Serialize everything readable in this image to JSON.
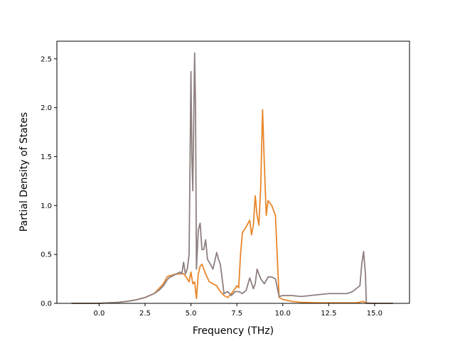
{
  "chart_data": {
    "type": "line",
    "title": "",
    "xlabel": "Frequency (THz)",
    "ylabel": "Partial Density of States",
    "xlim": [
      -2.3,
      16.9
    ],
    "ylim": [
      0,
      2.68
    ],
    "xticks": [
      0.0,
      2.5,
      5.0,
      7.5,
      10.0,
      12.5,
      15.0
    ],
    "xtick_labels": [
      "0.0",
      "2.5",
      "5.0",
      "7.5",
      "10.0",
      "12.5",
      "15.0"
    ],
    "yticks": [
      0.0,
      0.5,
      1.0,
      1.5,
      2.0,
      2.5
    ],
    "ytick_labels": [
      "0.0",
      "0.5",
      "1.0",
      "1.5",
      "2.0",
      "2.5"
    ],
    "grid": false,
    "legend": "none",
    "series": [
      {
        "color": "#e8862a",
        "x": [
          -1.5,
          0.0,
          0.5,
          1.0,
          1.5,
          2.0,
          2.5,
          3.0,
          3.3,
          3.5,
          3.7,
          3.8,
          4.0,
          4.2,
          4.4,
          4.5,
          4.6,
          4.7,
          4.8,
          4.9,
          5.0,
          5.1,
          5.2,
          5.3,
          5.4,
          5.5,
          5.6,
          5.7,
          5.8,
          6.0,
          6.2,
          6.4,
          6.6,
          6.8,
          7.0,
          7.2,
          7.4,
          7.5,
          7.6,
          7.7,
          7.8,
          8.0,
          8.2,
          8.3,
          8.4,
          8.5,
          8.6,
          8.7,
          8.8,
          8.9,
          9.0,
          9.1,
          9.2,
          9.4,
          9.6,
          9.8,
          10.0,
          10.5,
          11.0,
          12.0,
          13.0,
          14.0,
          14.4,
          14.5,
          15.0,
          16.0
        ],
        "values": [
          0.0,
          0.0,
          0.005,
          0.01,
          0.02,
          0.035,
          0.06,
          0.1,
          0.16,
          0.2,
          0.27,
          0.28,
          0.29,
          0.3,
          0.3,
          0.31,
          0.3,
          0.28,
          0.25,
          0.22,
          0.32,
          0.2,
          0.22,
          0.05,
          0.3,
          0.38,
          0.4,
          0.35,
          0.3,
          0.22,
          0.2,
          0.18,
          0.12,
          0.08,
          0.06,
          0.1,
          0.15,
          0.18,
          0.16,
          0.5,
          0.72,
          0.78,
          0.85,
          0.7,
          0.8,
          1.1,
          0.9,
          0.8,
          1.2,
          1.98,
          1.4,
          0.9,
          1.05,
          1.0,
          0.9,
          0.06,
          0.04,
          0.02,
          0.01,
          0.005,
          0.005,
          0.005,
          0.02,
          0.005,
          0.0,
          0.0
        ]
      },
      {
        "color": "#8e7f7f",
        "x": [
          -1.5,
          0.0,
          0.5,
          1.0,
          1.5,
          2.0,
          2.5,
          3.0,
          3.3,
          3.5,
          3.7,
          3.8,
          4.0,
          4.2,
          4.4,
          4.5,
          4.6,
          4.7,
          4.8,
          4.9,
          5.0,
          5.05,
          5.1,
          5.2,
          5.25,
          5.3,
          5.4,
          5.5,
          5.6,
          5.7,
          5.8,
          5.9,
          6.0,
          6.2,
          6.4,
          6.5,
          6.6,
          6.8,
          7.0,
          7.2,
          7.4,
          7.6,
          7.8,
          8.0,
          8.2,
          8.4,
          8.5,
          8.6,
          8.8,
          9.0,
          9.2,
          9.4,
          9.6,
          9.8,
          10.0,
          10.5,
          11.0,
          11.5,
          12.0,
          12.5,
          13.0,
          13.5,
          13.8,
          14.0,
          14.2,
          14.3,
          14.4,
          14.5,
          14.55,
          15.0,
          16.0
        ],
        "values": [
          0.0,
          0.0,
          0.005,
          0.01,
          0.02,
          0.035,
          0.06,
          0.1,
          0.14,
          0.18,
          0.24,
          0.26,
          0.28,
          0.3,
          0.32,
          0.3,
          0.42,
          0.3,
          0.35,
          0.5,
          2.37,
          1.5,
          1.15,
          2.56,
          2.0,
          0.35,
          0.75,
          0.82,
          0.55,
          0.55,
          0.65,
          0.45,
          0.42,
          0.35,
          0.52,
          0.45,
          0.4,
          0.1,
          0.12,
          0.08,
          0.12,
          0.12,
          0.1,
          0.13,
          0.26,
          0.15,
          0.2,
          0.35,
          0.25,
          0.2,
          0.27,
          0.27,
          0.25,
          0.07,
          0.08,
          0.08,
          0.07,
          0.08,
          0.09,
          0.1,
          0.1,
          0.1,
          0.12,
          0.15,
          0.18,
          0.4,
          0.53,
          0.3,
          0.0,
          0.0,
          0.0
        ]
      }
    ]
  }
}
